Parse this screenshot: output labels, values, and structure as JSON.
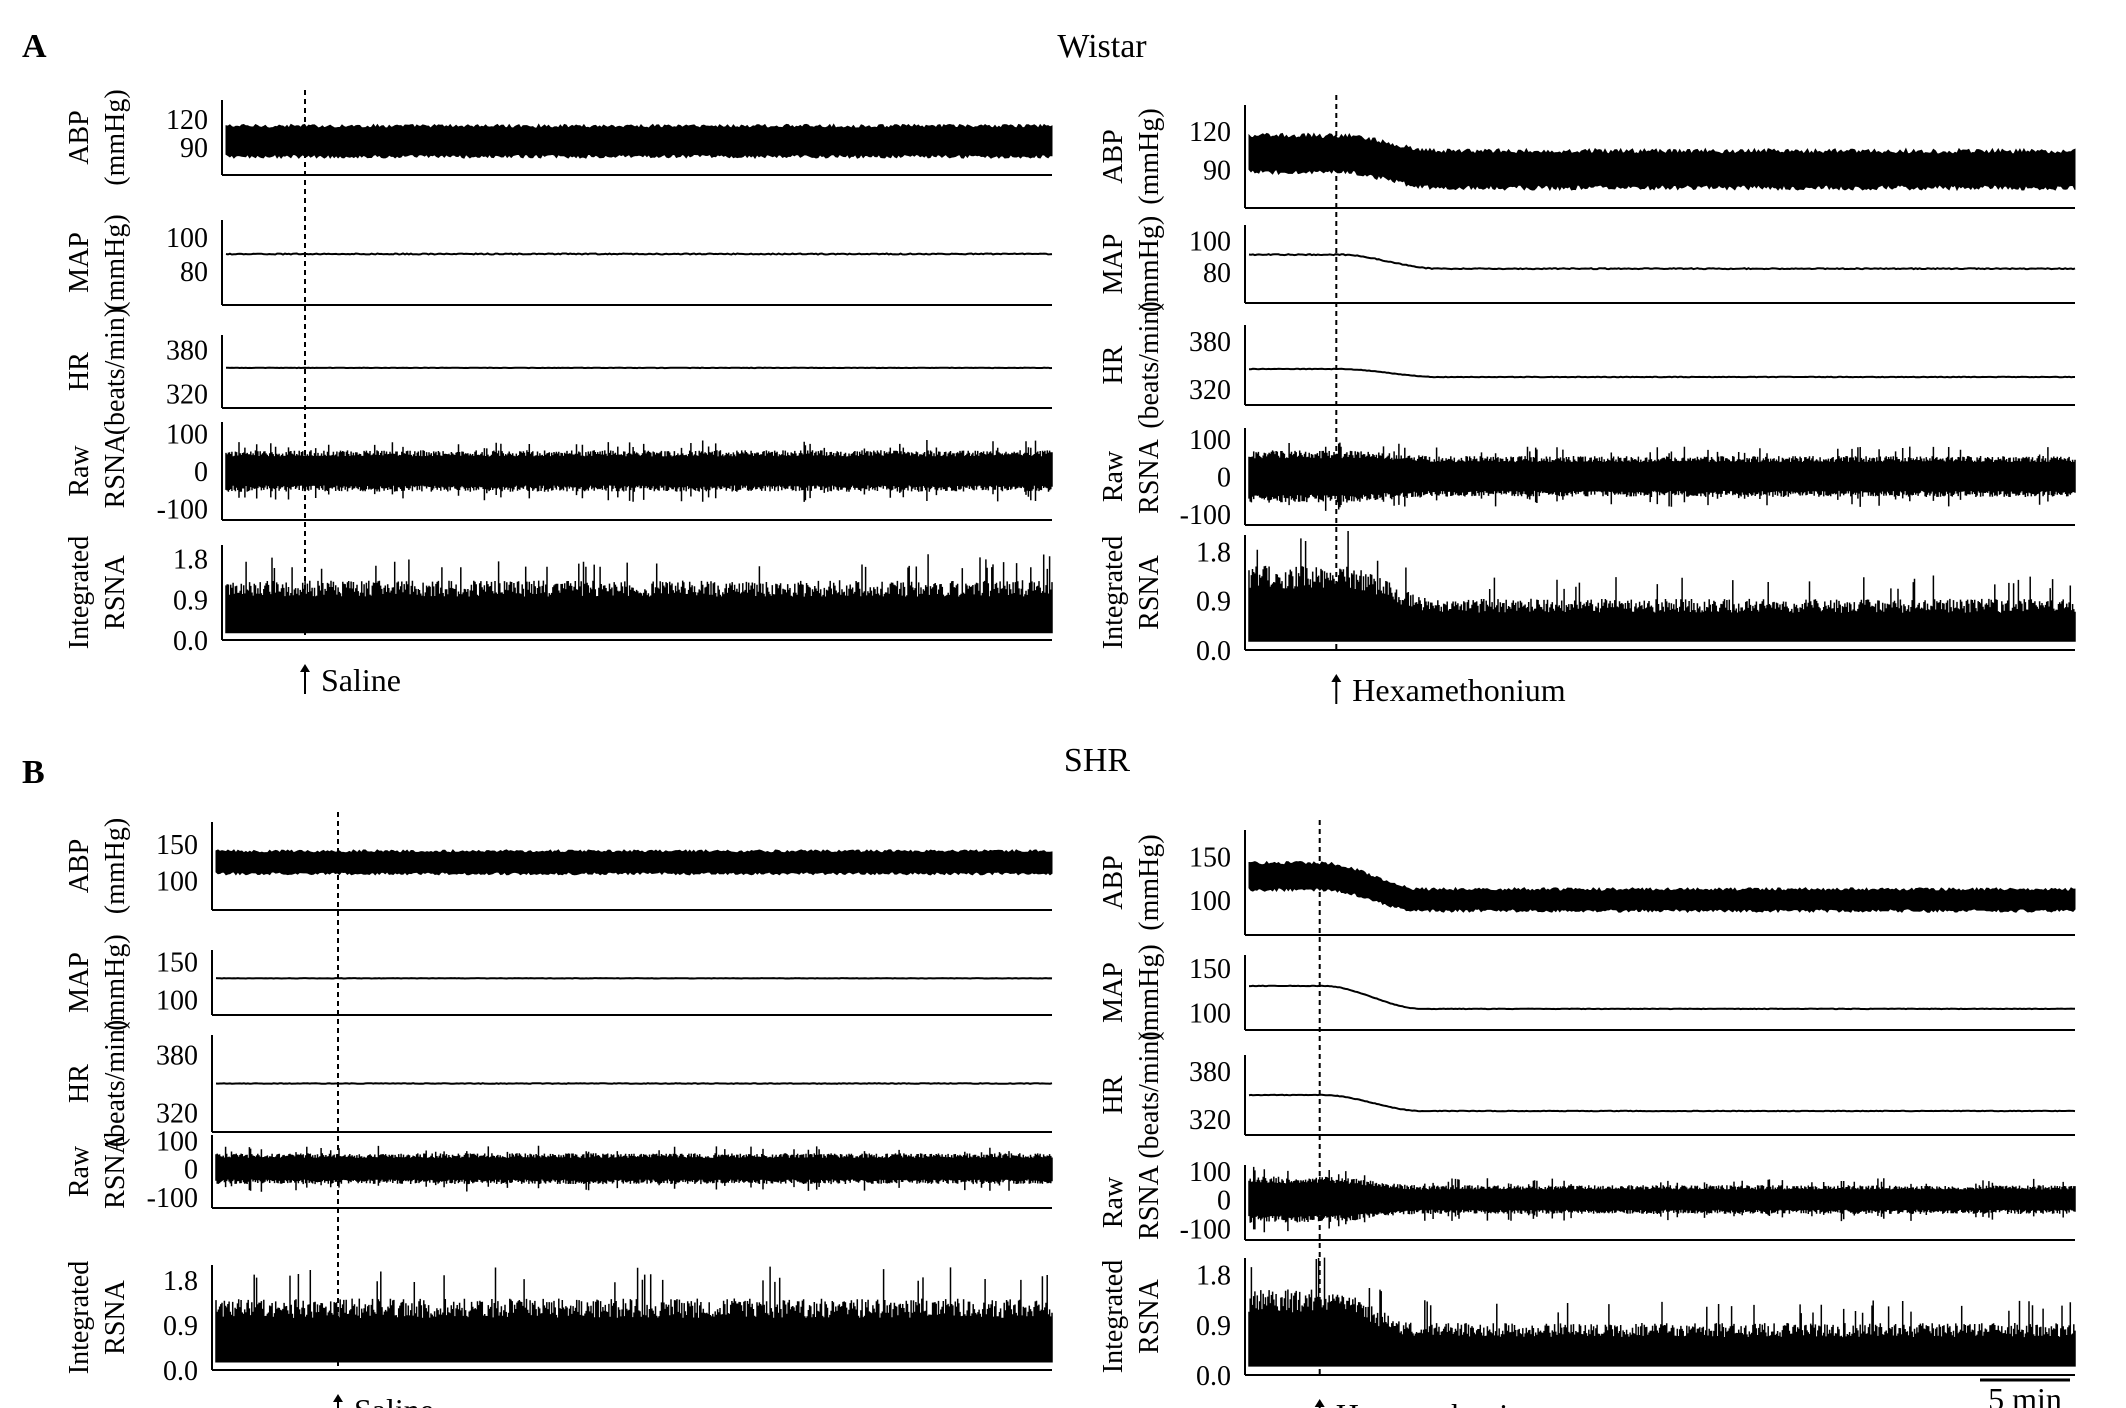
{
  "panels": [
    {
      "letter": "A",
      "strain": "Wistar"
    },
    {
      "letter": "B",
      "strain": "SHR"
    }
  ],
  "scale_bar_label": "5 min",
  "chart_data": [
    {
      "type": "line",
      "panel": "A",
      "strain": "Wistar",
      "treatment": "Saline",
      "event_label": "Saline",
      "event_time_fraction": 0.1,
      "response": "none",
      "channels": [
        {
          "name": "ABP",
          "unit": "(mmHg)",
          "ticks": [
            "120",
            "90"
          ],
          "tick_values": [
            120,
            90
          ],
          "range": [
            60,
            140
          ],
          "kind": "pulsatile",
          "baseline": [
            80,
            112
          ],
          "post": [
            80,
            112
          ]
        },
        {
          "name": "MAP",
          "unit": "(mmHg)",
          "ticks": [
            "100",
            "80"
          ],
          "tick_values": [
            100,
            80
          ],
          "range": [
            60,
            110
          ],
          "kind": "line",
          "baseline": 90,
          "post": 90
        },
        {
          "name": "HR",
          "unit": "(beats/min)",
          "ticks": [
            "380",
            "320"
          ],
          "tick_values": [
            380,
            320
          ],
          "range": [
            300,
            400
          ],
          "kind": "line",
          "baseline": 355,
          "post": 355
        },
        {
          "name": "Raw",
          "unit": "RSNA",
          "ticks": [
            "100",
            "0",
            "-100"
          ],
          "tick_values": [
            100,
            0,
            -100
          ],
          "range": [
            -130,
            130
          ],
          "kind": "noise",
          "baseline": 55,
          "post": 55
        },
        {
          "name": "Integrated",
          "unit": "RSNA",
          "ticks": [
            "1.8",
            "0.9",
            "0.0"
          ],
          "tick_values": [
            1.8,
            0.9,
            0.0
          ],
          "range": [
            0,
            2.1
          ],
          "kind": "integrated",
          "baseline": 1.2,
          "post": 1.2
        }
      ]
    },
    {
      "type": "line",
      "panel": "A",
      "strain": "Wistar",
      "treatment": "Hexamethonium",
      "event_label": "Hexamethonium",
      "event_time_fraction": 0.11,
      "response": "decrease",
      "channels": [
        {
          "name": "ABP",
          "unit": "(mmHg)",
          "ticks": [
            "120",
            "90"
          ],
          "tick_values": [
            120,
            90
          ],
          "range": [
            60,
            140
          ],
          "kind": "pulsatile",
          "baseline": [
            88,
            116
          ],
          "post": [
            76,
            104
          ]
        },
        {
          "name": "MAP",
          "unit": "(mmHg)",
          "ticks": [
            "100",
            "80"
          ],
          "tick_values": [
            100,
            80
          ],
          "range": [
            60,
            110
          ],
          "kind": "line",
          "baseline": 91,
          "post": 82
        },
        {
          "name": "HR",
          "unit": "(beats/min)",
          "ticks": [
            "380",
            "320"
          ],
          "tick_values": [
            380,
            320
          ],
          "range": [
            300,
            400
          ],
          "kind": "line",
          "baseline": 345,
          "post": 335
        },
        {
          "name": "Raw",
          "unit": "RSNA",
          "ticks": [
            "100",
            "0",
            "-100"
          ],
          "tick_values": [
            100,
            0,
            -100
          ],
          "range": [
            -130,
            130
          ],
          "kind": "noise",
          "baseline": 70,
          "post": 55
        },
        {
          "name": "Integrated",
          "unit": "RSNA",
          "ticks": [
            "1.8",
            "0.9",
            "0.0"
          ],
          "tick_values": [
            1.8,
            0.9,
            0.0
          ],
          "range": [
            0,
            2.1
          ],
          "kind": "integrated",
          "baseline": 1.4,
          "post": 0.85
        }
      ]
    },
    {
      "type": "line",
      "panel": "B",
      "strain": "SHR",
      "treatment": "Saline",
      "event_label": "Saline",
      "event_time_fraction": 0.15,
      "response": "none",
      "channels": [
        {
          "name": "ABP",
          "unit": "(mmHg)",
          "ticks": [
            "150",
            "100"
          ],
          "tick_values": [
            150,
            100
          ],
          "range": [
            60,
            180
          ],
          "kind": "pulsatile",
          "baseline": [
            110,
            140
          ],
          "post": [
            108,
            138
          ]
        },
        {
          "name": "MAP",
          "unit": "(mmHg)",
          "ticks": [
            "150",
            "100"
          ],
          "tick_values": [
            150,
            100
          ],
          "range": [
            80,
            165
          ],
          "kind": "line",
          "baseline": 128,
          "post": 127
        },
        {
          "name": "HR",
          "unit": "(beats/min)",
          "ticks": [
            "380",
            "320"
          ],
          "tick_values": [
            380,
            320
          ],
          "range": [
            300,
            400
          ],
          "kind": "line",
          "baseline": 350,
          "post": 350
        },
        {
          "name": "Raw",
          "unit": "RSNA",
          "ticks": [
            "100",
            "0",
            "-100"
          ],
          "tick_values": [
            100,
            0,
            -100
          ],
          "range": [
            -140,
            120
          ],
          "kind": "noise",
          "baseline": 55,
          "post": 55
        },
        {
          "name": "Integrated",
          "unit": "RSNA",
          "ticks": [
            "1.8",
            "0.9",
            "0.0"
          ],
          "tick_values": [
            1.8,
            0.9,
            0.0
          ],
          "range": [
            0,
            2.1
          ],
          "kind": "integrated",
          "baseline": 1.3,
          "post": 1.3
        }
      ]
    },
    {
      "type": "line",
      "panel": "B",
      "strain": "SHR",
      "treatment": "Hexamethonium",
      "event_label": "Hexamethonium",
      "event_time_fraction": 0.09,
      "response": "decrease",
      "channels": [
        {
          "name": "ABP",
          "unit": "(mmHg)",
          "ticks": [
            "150",
            "100"
          ],
          "tick_values": [
            150,
            100
          ],
          "range": [
            60,
            180
          ],
          "kind": "pulsatile",
          "baseline": [
            112,
            142
          ],
          "post": [
            88,
            112
          ]
        },
        {
          "name": "MAP",
          "unit": "(mmHg)",
          "ticks": [
            "150",
            "100"
          ],
          "tick_values": [
            150,
            100
          ],
          "range": [
            80,
            165
          ],
          "kind": "line",
          "baseline": 130,
          "post": 104
        },
        {
          "name": "HR",
          "unit": "(beats/min)",
          "ticks": [
            "380",
            "320"
          ],
          "tick_values": [
            380,
            320
          ],
          "range": [
            300,
            400
          ],
          "kind": "line",
          "baseline": 350,
          "post": 330
        },
        {
          "name": "Raw",
          "unit": "RSNA",
          "ticks": [
            "100",
            "0",
            "-100"
          ],
          "tick_values": [
            100,
            0,
            -100
          ],
          "range": [
            -140,
            120
          ],
          "kind": "noise",
          "baseline": 80,
          "post": 50
        },
        {
          "name": "Integrated",
          "unit": "RSNA",
          "ticks": [
            "1.8",
            "0.9",
            "0.0"
          ],
          "tick_values": [
            1.8,
            0.9,
            0.0
          ],
          "range": [
            0,
            2.1
          ],
          "kind": "integrated",
          "baseline": 1.4,
          "post": 0.85
        }
      ]
    }
  ]
}
